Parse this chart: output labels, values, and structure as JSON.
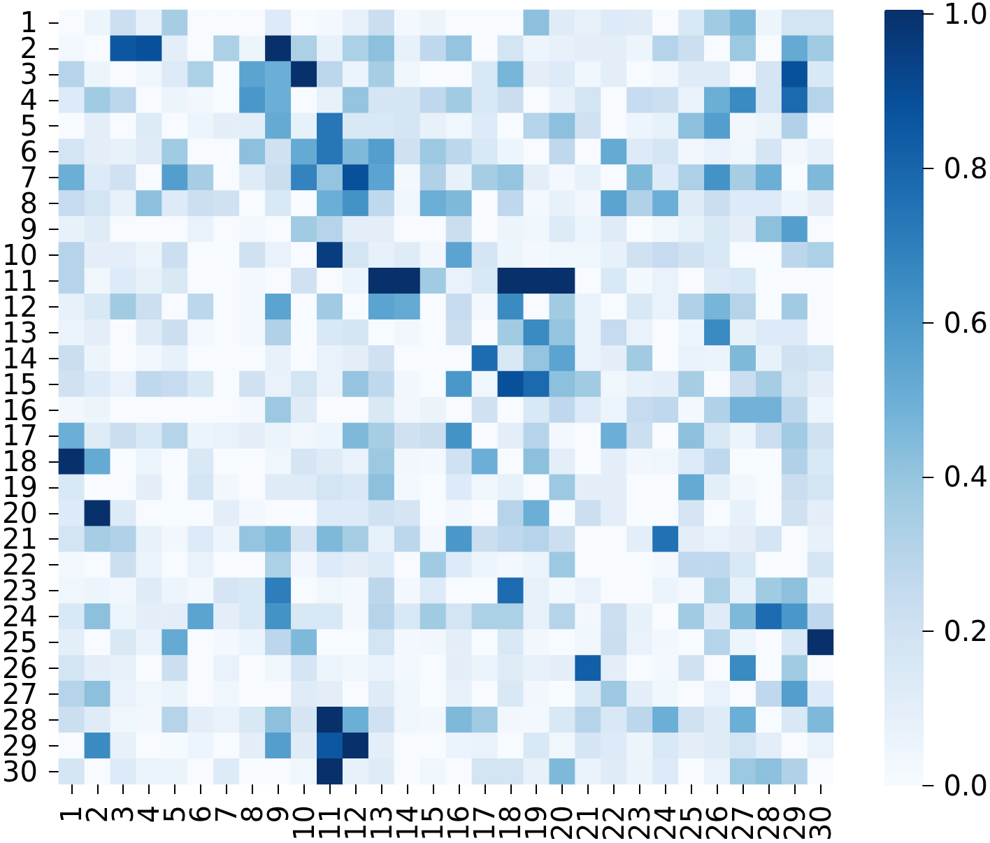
{
  "chart_data": {
    "type": "heatmap",
    "categories": [
      "1",
      "2",
      "3",
      "4",
      "5",
      "6",
      "7",
      "8",
      "9",
      "10",
      "11",
      "12",
      "13",
      "14",
      "15",
      "16",
      "17",
      "18",
      "19",
      "20",
      "21",
      "22",
      "23",
      "24",
      "25",
      "26",
      "27",
      "28",
      "29",
      "30"
    ],
    "y_categories": [
      "1",
      "2",
      "3",
      "4",
      "5",
      "6",
      "7",
      "8",
      "9",
      "10",
      "11",
      "12",
      "13",
      "14",
      "15",
      "16",
      "17",
      "18",
      "19",
      "20",
      "21",
      "22",
      "23",
      "24",
      "25",
      "26",
      "27",
      "28",
      "29",
      "30"
    ],
    "cells": [
      [
        0,
        0.05,
        0.22,
        0.08,
        0.35,
        0,
        0,
        0,
        0.13,
        0,
        0.02,
        0.08,
        0.23,
        0.02,
        0.05,
        0,
        0,
        0,
        0.42,
        0.12,
        0.08,
        0.13,
        0.12,
        0,
        0.15,
        0.37,
        0.45,
        0.05,
        0.18,
        0.18
      ],
      [
        0.02,
        0,
        0.85,
        0.88,
        0.1,
        0,
        0.33,
        0.05,
        1,
        0.33,
        0.08,
        0.33,
        0.42,
        0.08,
        0.27,
        0.4,
        0,
        0.18,
        0.05,
        0.08,
        0.1,
        0.1,
        0.05,
        0.3,
        0.22,
        0,
        0.38,
        0,
        0.52,
        0.37
      ],
      [
        0.3,
        0.05,
        0,
        0.04,
        0.13,
        0.33,
        0,
        0.55,
        0.5,
        1,
        0.28,
        0.06,
        0.35,
        0.04,
        0,
        0,
        0.15,
        0.47,
        0.1,
        0.13,
        0.04,
        0.1,
        0,
        0.03,
        0.12,
        0.12,
        0,
        0.17,
        0.88,
        0.15
      ],
      [
        0.13,
        0.37,
        0.28,
        0,
        0.05,
        0.03,
        0,
        0.6,
        0.5,
        0,
        0.08,
        0.4,
        0.17,
        0.17,
        0.27,
        0.37,
        0.15,
        0.23,
        0,
        0.08,
        0.18,
        0,
        0.25,
        0.22,
        0.07,
        0.5,
        0.65,
        0.18,
        0.78,
        0.3
      ],
      [
        0,
        0.1,
        0,
        0.13,
        0,
        0.05,
        0.1,
        0.1,
        0.52,
        0.08,
        0.73,
        0.15,
        0.15,
        0.17,
        0.08,
        0.04,
        0.13,
        0,
        0.3,
        0.42,
        0.2,
        0,
        0.05,
        0.08,
        0.42,
        0.57,
        0.03,
        0.06,
        0.32,
        0
      ],
      [
        0.18,
        0.1,
        0.08,
        0.12,
        0.37,
        0,
        0,
        0.42,
        0.2,
        0.52,
        0.73,
        0.45,
        0.57,
        0.2,
        0.38,
        0.28,
        0.15,
        0.05,
        0,
        0.27,
        0,
        0.52,
        0.13,
        0.17,
        0.03,
        0.07,
        0.04,
        0.17,
        0.03,
        0.08
      ],
      [
        0.5,
        0.13,
        0.2,
        0,
        0.57,
        0.35,
        0,
        0.12,
        0.23,
        0.68,
        0.4,
        0.88,
        0.55,
        0.02,
        0.32,
        0.08,
        0.35,
        0.4,
        0.1,
        0.02,
        0.08,
        0,
        0.45,
        0.13,
        0.33,
        0.62,
        0.35,
        0.5,
        0,
        0.45
      ],
      [
        0.25,
        0.18,
        0.08,
        0.42,
        0.13,
        0.22,
        0.2,
        0,
        0.15,
        0,
        0.5,
        0.62,
        0.27,
        0.04,
        0.5,
        0.45,
        0,
        0.27,
        0.02,
        0.08,
        0.03,
        0.55,
        0.32,
        0.5,
        0.12,
        0.23,
        0.13,
        0.13,
        0.05,
        0.1
      ],
      [
        0.08,
        0.12,
        0,
        0,
        0,
        0.07,
        0,
        0.02,
        0,
        0.37,
        0.3,
        0.1,
        0.1,
        0,
        0,
        0.23,
        0,
        0.05,
        0.04,
        0.13,
        0.05,
        0.12,
        0,
        0.04,
        0.08,
        0.15,
        0.1,
        0.42,
        0.57,
        0
      ],
      [
        0.3,
        0.1,
        0.1,
        0.05,
        0.22,
        0,
        0,
        0.2,
        0.07,
        0,
        0.95,
        0.18,
        0.08,
        0.12,
        0.03,
        0.55,
        0.17,
        0.05,
        0.02,
        0.04,
        0.04,
        0.08,
        0.2,
        0.25,
        0.2,
        0.15,
        0,
        0,
        0.28,
        0.33
      ],
      [
        0.3,
        0.04,
        0.13,
        0.08,
        0.15,
        0,
        0,
        0.02,
        0,
        0.2,
        0,
        0.06,
        1,
        1,
        0.37,
        0.07,
        0.15,
        1,
        1,
        1,
        0,
        0.15,
        0.02,
        0.07,
        0,
        0.13,
        0.15,
        0,
        0,
        0
      ],
      [
        0.08,
        0.15,
        0.37,
        0.22,
        0,
        0.28,
        0,
        0.02,
        0.55,
        0,
        0.37,
        0,
        0.55,
        0.52,
        0,
        0.25,
        0.02,
        0.65,
        0,
        0.37,
        0.07,
        0,
        0.15,
        0.07,
        0.32,
        0.47,
        0.3,
        0,
        0.37,
        0
      ],
      [
        0.06,
        0.1,
        0,
        0.12,
        0.22,
        0.02,
        0,
        0.02,
        0.32,
        0,
        0.15,
        0.17,
        0,
        0.03,
        0,
        0.23,
        0,
        0.37,
        0.65,
        0.4,
        0.07,
        0.25,
        0.07,
        0,
        0.05,
        0.65,
        0.08,
        0.13,
        0.13,
        0
      ],
      [
        0.23,
        0.05,
        0,
        0.03,
        0.08,
        0,
        0,
        0,
        0.08,
        0,
        0.07,
        0.1,
        0.2,
        0,
        0,
        0,
        0.77,
        0.15,
        0.4,
        0.55,
        0.07,
        0.1,
        0.37,
        0,
        0.07,
        0.06,
        0.45,
        0.08,
        0.2,
        0.18
      ],
      [
        0.2,
        0.13,
        0.07,
        0.27,
        0.25,
        0.15,
        0,
        0.2,
        0.07,
        0.18,
        0.07,
        0.4,
        0.27,
        0.03,
        0,
        0.6,
        0.04,
        0.88,
        0.78,
        0.42,
        0.37,
        0.04,
        0.08,
        0.1,
        0.35,
        0,
        0.23,
        0.35,
        0.18,
        0.1
      ],
      [
        0.03,
        0.05,
        0,
        0,
        0,
        0,
        0,
        0.02,
        0.38,
        0.12,
        0,
        0,
        0.15,
        0.03,
        0.06,
        0,
        0.2,
        0,
        0.15,
        0.27,
        0.13,
        0.05,
        0.25,
        0.27,
        0.02,
        0.32,
        0.48,
        0.48,
        0.28,
        0.05
      ],
      [
        0.5,
        0.12,
        0.23,
        0.15,
        0.3,
        0.06,
        0.07,
        0.1,
        0.06,
        0.03,
        0.05,
        0.45,
        0.35,
        0.2,
        0.23,
        0.62,
        0,
        0.1,
        0.3,
        0.02,
        0,
        0.5,
        0.22,
        0,
        0.42,
        0.15,
        0.06,
        0.22,
        0.37,
        0.2
      ],
      [
        1,
        0.52,
        0,
        0.05,
        0,
        0.15,
        0,
        0,
        0.04,
        0.17,
        0.12,
        0.07,
        0.38,
        0.03,
        0.02,
        0.2,
        0.5,
        0,
        0.42,
        0.1,
        0,
        0.1,
        0.03,
        0.04,
        0.13,
        0.27,
        0,
        0,
        0.32,
        0.15
      ],
      [
        0.15,
        0,
        0,
        0.1,
        0,
        0.17,
        0.03,
        0,
        0.12,
        0.12,
        0.18,
        0.15,
        0.42,
        0.02,
        0,
        0.13,
        0.04,
        0.08,
        0,
        0.38,
        0.1,
        0.1,
        0,
        0,
        0.52,
        0.1,
        0.03,
        0,
        0.23,
        0.18
      ],
      [
        0.13,
        1,
        0.13,
        0,
        0,
        0,
        0.1,
        0.02,
        0,
        0,
        0.13,
        0.13,
        0.2,
        0.17,
        0,
        0.03,
        0,
        0.3,
        0.5,
        0,
        0.22,
        0.1,
        0,
        0,
        0.17,
        0,
        0.08,
        0,
        0.2,
        0.1
      ],
      [
        0.18,
        0.35,
        0.32,
        0.08,
        0.03,
        0.13,
        0.05,
        0.4,
        0.45,
        0.17,
        0.45,
        0.35,
        0.08,
        0.28,
        0.02,
        0.6,
        0.23,
        0.27,
        0.3,
        0.22,
        0,
        0,
        0.1,
        0.75,
        0.1,
        0.07,
        0.1,
        0.17,
        0,
        0.08
      ],
      [
        0.02,
        0,
        0.22,
        0.06,
        0,
        0.07,
        0,
        0,
        0.33,
        0.03,
        0.13,
        0.1,
        0.13,
        0,
        0.37,
        0.13,
        0.05,
        0.02,
        0.06,
        0.38,
        0,
        0,
        0,
        0.02,
        0.27,
        0.27,
        0.15,
        0,
        0,
        0.17
      ],
      [
        0.04,
        0.05,
        0.03,
        0.12,
        0.05,
        0.02,
        0.17,
        0.15,
        0.7,
        0,
        0.04,
        0.02,
        0.28,
        0.02,
        0.13,
        0,
        0,
        0.77,
        0.08,
        0.02,
        0.07,
        0,
        0,
        0.06,
        0.02,
        0.33,
        0.08,
        0.37,
        0.42,
        0.05
      ],
      [
        0.15,
        0.42,
        0.05,
        0.1,
        0.1,
        0.55,
        0.1,
        0.15,
        0.62,
        0.15,
        0.15,
        0.02,
        0.3,
        0.15,
        0.37,
        0.18,
        0.33,
        0.33,
        0.08,
        0.3,
        0.03,
        0.22,
        0.08,
        0,
        0.37,
        0.12,
        0.45,
        0.77,
        0.6,
        0.27
      ],
      [
        0.1,
        0,
        0.15,
        0.07,
        0.52,
        0,
        0.02,
        0.06,
        0.28,
        0.45,
        0,
        0,
        0.18,
        0.02,
        0.03,
        0.1,
        0,
        0.15,
        0.03,
        0,
        0.04,
        0.23,
        0.07,
        0.03,
        0,
        0.3,
        0.05,
        0,
        0.15,
        1
      ],
      [
        0.18,
        0.1,
        0.08,
        0,
        0.22,
        0,
        0.07,
        0,
        0.04,
        0.17,
        0.05,
        0.04,
        0.07,
        0.02,
        0,
        0.1,
        0.06,
        0.12,
        0.08,
        0.1,
        0.82,
        0.1,
        0,
        0.02,
        0.2,
        0,
        0.65,
        0,
        0.37,
        0
      ],
      [
        0.3,
        0.42,
        0.07,
        0.04,
        0.06,
        0,
        0.04,
        0,
        0,
        0.12,
        0.1,
        0,
        0.12,
        0.04,
        0,
        0.08,
        0,
        0.15,
        0.03,
        0,
        0.15,
        0.38,
        0.1,
        0.04,
        0,
        0.07,
        0,
        0.27,
        0.57,
        0.13
      ],
      [
        0.22,
        0.12,
        0.04,
        0.03,
        0.3,
        0.1,
        0.07,
        0.15,
        0.42,
        0.17,
        1,
        0.5,
        0.2,
        0.04,
        0.03,
        0.45,
        0.37,
        0.03,
        0.02,
        0.15,
        0.3,
        0.15,
        0.28,
        0.5,
        0.2,
        0.12,
        0.5,
        0,
        0.15,
        0.45
      ],
      [
        0,
        0.65,
        0.08,
        0,
        0.01,
        0.05,
        0,
        0.1,
        0.57,
        0.12,
        0.85,
        1,
        0.1,
        0,
        0,
        0.06,
        0.07,
        0,
        0.15,
        0.04,
        0.17,
        0.13,
        0.05,
        0.15,
        0.1,
        0.12,
        0.18,
        0.1,
        0,
        0.07
      ],
      [
        0.17,
        0,
        0.13,
        0.06,
        0.06,
        0,
        0.13,
        0,
        0,
        0.04,
        1,
        0.08,
        0.12,
        0,
        0.04,
        0,
        0.18,
        0.18,
        0.08,
        0.45,
        0.07,
        0.12,
        0.06,
        0.13,
        0,
        0.07,
        0.38,
        0.42,
        0.32,
        0
      ]
    ],
    "clim": [
      0,
      1
    ],
    "cticks": [
      {
        "value": 0,
        "label": "0.0"
      },
      0.2,
      0.4,
      0.6,
      0.8,
      {
        "value": 1,
        "label": "1.0"
      }
    ],
    "colors": [
      "#f7fbff",
      "#deebf7",
      "#c6dbef",
      "#9ecae1",
      "#6baed6",
      "#4292c6",
      "#2171b5",
      "#08519c",
      "#08306b"
    ]
  }
}
